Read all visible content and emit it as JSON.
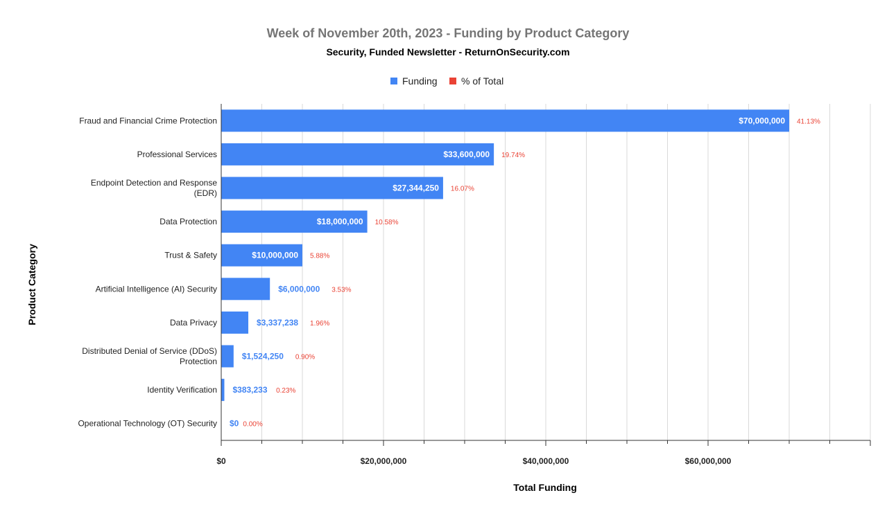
{
  "chart_data": {
    "type": "bar",
    "orientation": "horizontal",
    "title": "Week of November 20th, 2023 - Funding by Product Category",
    "subtitle": "Security, Funded Newsletter - ReturnOnSecurity.com",
    "xlabel": "Total Funding",
    "ylabel": "Product Category",
    "xlim": [
      0,
      80000000
    ],
    "x_ticks": [
      0,
      20000000,
      40000000,
      60000000
    ],
    "x_tick_labels": [
      "$0",
      "$20,000,000",
      "$40,000,000",
      "$60,000,000"
    ],
    "grid": true,
    "legend": {
      "position": "top",
      "entries": [
        {
          "name": "Funding",
          "color": "#4285F4"
        },
        {
          "name": "% of Total",
          "color": "#EA4335"
        }
      ]
    },
    "categories": [
      "Fraud and Financial Crime Protection",
      "Professional Services",
      "Endpoint Detection and Response (EDR)",
      "Data Protection",
      "Trust & Safety",
      "Artificial Intelligence (AI) Security",
      "Data Privacy",
      "Distributed Denial of Service (DDoS) Protection",
      "Identity Verification",
      "Operational Technology (OT) Security"
    ],
    "category_label_lines": [
      [
        "Fraud and Financial Crime Protection"
      ],
      [
        "Professional Services"
      ],
      [
        "Endpoint Detection and Response",
        "(EDR)"
      ],
      [
        "Data Protection"
      ],
      [
        "Trust & Safety"
      ],
      [
        "Artificial Intelligence (AI) Security"
      ],
      [
        "Data Privacy"
      ],
      [
        "Distributed Denial of Service (DDoS)",
        "Protection"
      ],
      [
        "Identity Verification"
      ],
      [
        "Operational Technology (OT) Security"
      ]
    ],
    "series": [
      {
        "name": "Funding",
        "color": "#4285F4",
        "values": [
          70000000,
          33600000,
          27344250,
          18000000,
          10000000,
          6000000,
          3337238,
          1524250,
          383233,
          0
        ],
        "labels": [
          "$70,000,000",
          "$33,600,000",
          "$27,344,250",
          "$18,000,000",
          "$10,000,000",
          "$6,000,000",
          "$3,337,238",
          "$1,524,250",
          "$383,233",
          "$0"
        ]
      },
      {
        "name": "% of Total",
        "color": "#EA4335",
        "values": [
          41.13,
          19.74,
          16.07,
          10.58,
          5.88,
          3.53,
          1.96,
          0.9,
          0.23,
          0.0
        ],
        "labels": [
          "41.13%",
          "19.74%",
          "16.07%",
          "10.58%",
          "5.88%",
          "3.53%",
          "1.96%",
          "0.90%",
          "0.23%",
          "0.00%"
        ]
      }
    ]
  }
}
